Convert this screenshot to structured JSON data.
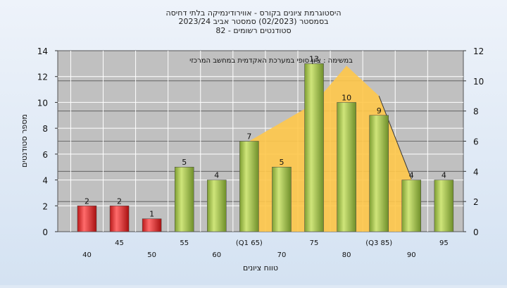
{
  "chart_data": {
    "type": "bar",
    "title_lines": [
      "היסטוגרמת ציונים בקורס - אווירודינמיקה בלתי דחיסה",
      "בסמסטר  (02/2023)  סמסטר אביב 2023/24",
      "סטודנטים רשומים - 82"
    ],
    "annotation": "במשימה : ציון סופי במערכת האקדמית במחשב המרכזי",
    "ylabel": "מספר סטודנטים",
    "xlabel": "טווח ציונים",
    "ylim": [
      0,
      14
    ],
    "y_ticks": [
      0,
      2,
      4,
      6,
      8,
      10,
      12,
      14
    ],
    "y2lim": [
      0,
      12
    ],
    "y2_ticks": [
      0,
      2,
      4,
      6,
      8,
      10,
      12
    ],
    "grid": true,
    "categories": [
      "40",
      "45",
      "50",
      "55",
      "60",
      "65",
      "70",
      "75",
      "80",
      "85",
      "90",
      "95"
    ],
    "x_tick_labels": [
      "40",
      "45",
      "50",
      "55",
      "60",
      "(Q1 65)",
      "70",
      "75",
      "80",
      "(Q3 85)",
      "90",
      "95"
    ],
    "values": [
      2,
      2,
      1,
      5,
      4,
      7,
      5,
      13,
      10,
      9,
      4,
      4
    ],
    "bar_colors": [
      "red",
      "red",
      "red",
      "green",
      "green",
      "green",
      "green",
      "green",
      "green",
      "green",
      "green",
      "green"
    ],
    "distribution_curve": [
      {
        "x": "65",
        "y": 6
      },
      {
        "x": "75",
        "y": 8.5
      },
      {
        "x": "80",
        "y": 11
      },
      {
        "x": "85",
        "y": 9
      },
      {
        "x": "90",
        "y": 3.5
      }
    ],
    "colors": {
      "fail_bar": "#d92a2a",
      "pass_bar": "#9cc24a",
      "distribution": "#ffc84a",
      "plot_bg": "#c0c0c0"
    }
  }
}
